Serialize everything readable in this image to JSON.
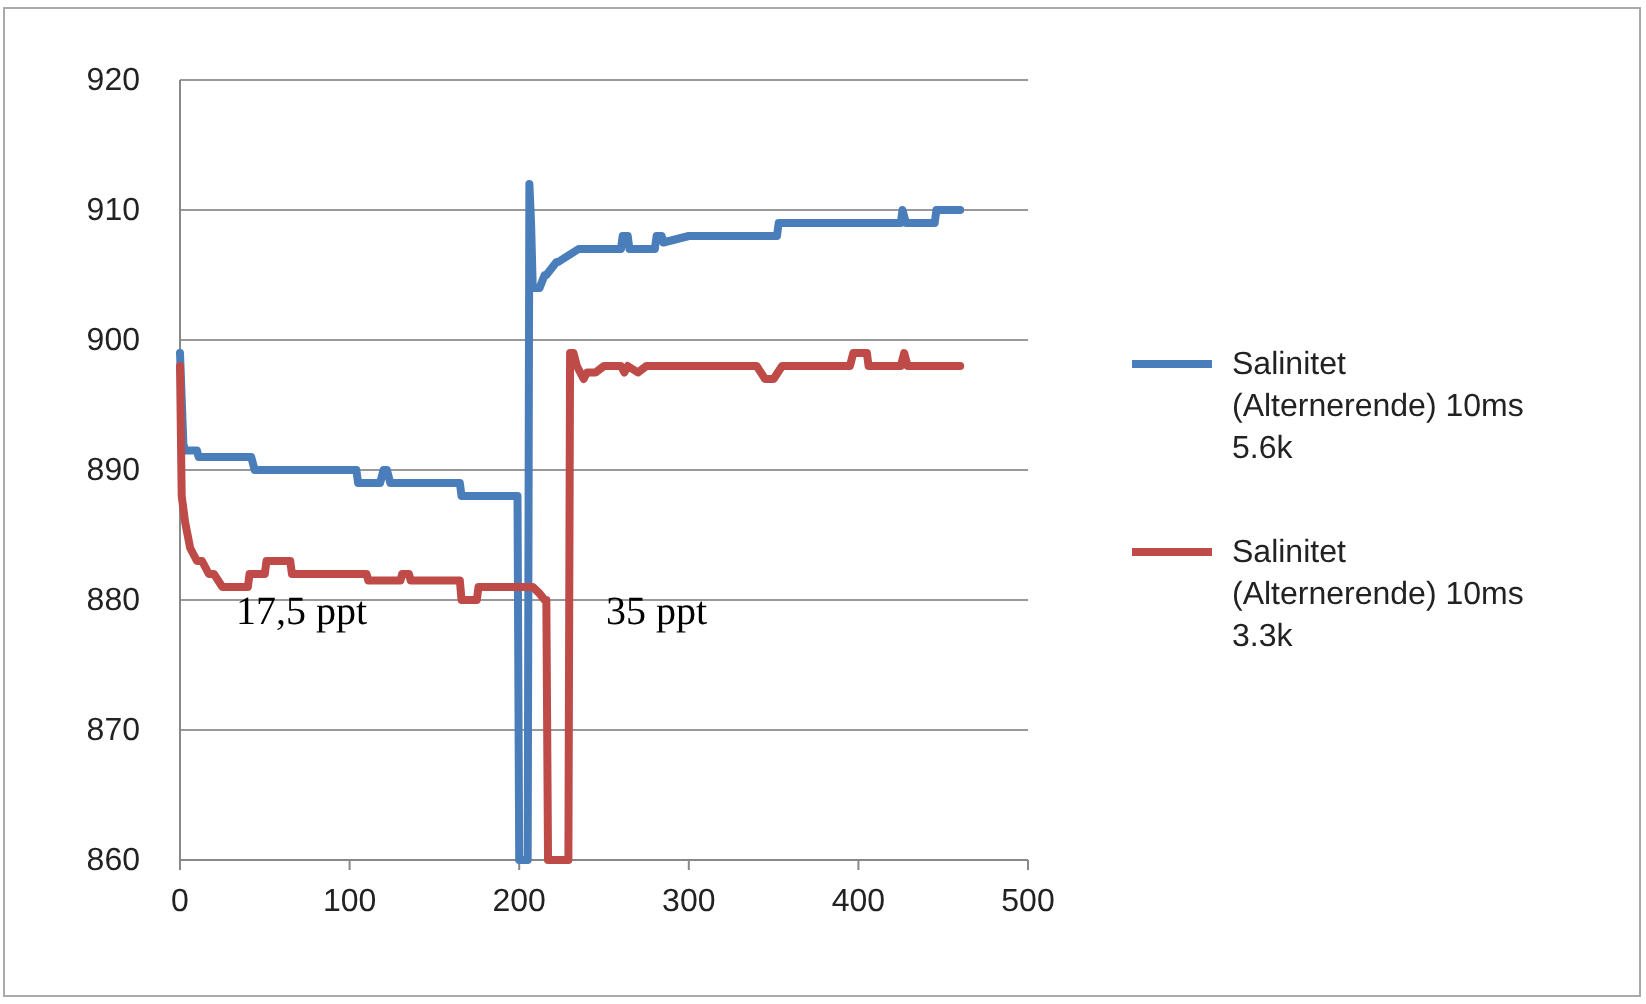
{
  "chart_data": {
    "type": "line",
    "xlim": [
      0,
      500
    ],
    "xticks": [
      0,
      100,
      200,
      300,
      400,
      500
    ],
    "ylim": [
      860,
      920
    ],
    "yticks": [
      860,
      870,
      880,
      890,
      900,
      910,
      920
    ],
    "grid": "y",
    "legend": "right",
    "marker": "none",
    "line_style": "solid",
    "series": [
      {
        "name": "Salinitet (Alternerende) 10ms 5.6k",
        "color": "#4a7ebb",
        "x": [
          0,
          2,
          3,
          10,
          11,
          38,
          40,
          42,
          44,
          104,
          105,
          118,
          120,
          122,
          124,
          165,
          166,
          175,
          176,
          198,
          199,
          200,
          201,
          205,
          206,
          207,
          208,
          212,
          215,
          216,
          222,
          223,
          235,
          260,
          261,
          264,
          265,
          270,
          280,
          281,
          284,
          285,
          300,
          301,
          352,
          353,
          355,
          356,
          425,
          426,
          428,
          429,
          445,
          446,
          460
        ],
        "values": [
          899,
          892,
          891.5,
          891.5,
          891,
          891,
          891,
          891,
          890,
          890,
          889,
          889,
          890,
          890,
          889,
          889,
          888,
          888,
          888,
          888,
          888,
          860,
          860,
          860,
          912,
          909,
          904,
          904,
          905,
          905,
          906,
          906,
          907,
          907,
          908,
          908,
          907,
          907,
          907,
          908,
          908,
          907.5,
          908,
          908,
          908,
          909,
          909,
          909,
          909,
          910,
          909,
          909,
          909,
          910,
          910
        ]
      },
      {
        "name": "Salinitet (Alternerende) 10ms 3.3k",
        "color": "#be4b48",
        "x": [
          0,
          1,
          3,
          6,
          10,
          13,
          17,
          20,
          25,
          40,
          41,
          50,
          51,
          65,
          66,
          100,
          101,
          110,
          111,
          130,
          131,
          135,
          136,
          165,
          166,
          175,
          176,
          205,
          208,
          212,
          215,
          216,
          217,
          218,
          229,
          230,
          232,
          234,
          238,
          240,
          245,
          250,
          260,
          262,
          264,
          270,
          275,
          280,
          300,
          340,
          345,
          350,
          355,
          395,
          397,
          405,
          406,
          425,
          427,
          429,
          460
        ],
        "values": [
          898,
          888,
          886,
          884,
          883,
          883,
          882,
          882,
          881,
          881,
          882,
          882,
          883,
          883,
          882,
          882,
          882,
          882,
          881.5,
          881.5,
          882,
          882,
          881.5,
          881.5,
          880,
          880,
          881,
          881,
          881,
          880.5,
          880,
          880,
          860,
          860,
          860,
          899,
          899,
          898,
          897,
          897.5,
          897.5,
          898,
          898,
          897.5,
          898,
          897.5,
          898,
          898,
          898,
          898,
          897,
          897,
          898,
          898,
          899,
          899,
          898,
          898,
          899,
          898,
          898
        ]
      }
    ],
    "annotations": [
      "17,5 ppt",
      "35 ppt"
    ]
  }
}
